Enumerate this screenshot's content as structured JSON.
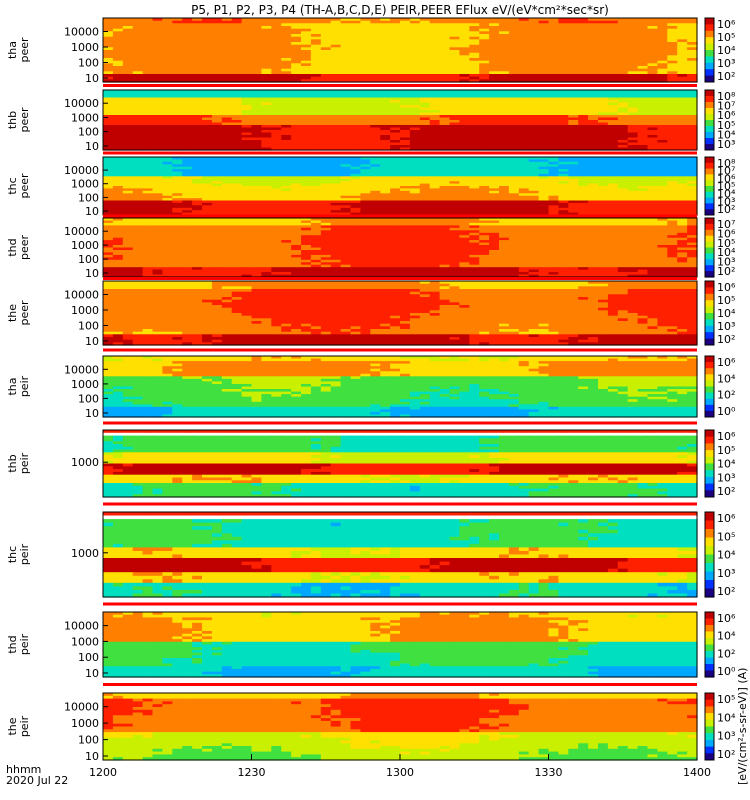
{
  "chart_data": {
    "type": "heatmap",
    "title": "P5, P1, P2, P3, P4 (TH-A,B,C,D,E) PEIR,PEER EFlux eV/(eV*cm²*sec*sr)",
    "x_ticks": [
      "1200",
      "1230",
      "1300",
      "1330",
      "1400"
    ],
    "x_label_lines": [
      "hhmm",
      "2020 Jul 22"
    ],
    "colorbar_unit_label": "[eV/(cm²-s-sr-eV)] (A)",
    "colormap": [
      "#1a0080",
      "#0030ff",
      "#00a8ff",
      "#00e0c0",
      "#40e040",
      "#c8f000",
      "#ffe000",
      "#ff8000",
      "#ff2000",
      "#c00000"
    ],
    "panels": [
      {
        "name": "thaeer",
        "label_lines": [
          "tha",
          "peer"
        ],
        "y_ticks": [
          "10",
          "100",
          "1000",
          "10000"
        ],
        "colorbar_ticks": [
          "10⁶",
          "10⁵",
          "10⁴",
          "10³",
          "10²"
        ]
      },
      {
        "name": "thbeer",
        "label_lines": [
          "thb",
          "peer"
        ],
        "y_ticks": [
          "10",
          "100",
          "1000",
          "10000"
        ],
        "colorbar_ticks": [
          "10⁸",
          "10⁷",
          "10⁶",
          "10⁵",
          "10⁴",
          "10³"
        ]
      },
      {
        "name": "thceer",
        "label_lines": [
          "thc",
          "peer"
        ],
        "y_ticks": [
          "10",
          "100",
          "1000",
          "10000"
        ],
        "colorbar_ticks": [
          "10⁸",
          "10⁷",
          "10⁶",
          "10⁵",
          "10⁴",
          "10³",
          "10²"
        ]
      },
      {
        "name": "thdeer",
        "label_lines": [
          "thd",
          "peer"
        ],
        "y_ticks": [
          "10",
          "100",
          "1000",
          "10000"
        ],
        "colorbar_ticks": [
          "10⁷",
          "10⁶",
          "10⁵",
          "10⁴",
          "10³",
          "10²"
        ]
      },
      {
        "name": "theeer",
        "label_lines": [
          "the",
          "peer"
        ],
        "y_ticks": [
          "10",
          "100",
          "1000",
          "10000"
        ],
        "colorbar_ticks": [
          "10⁶",
          "10⁵",
          "10⁴",
          "10³",
          "10²"
        ]
      },
      {
        "name": "thaeir",
        "label_lines": [
          "tha",
          "peir"
        ],
        "y_ticks": [
          "10",
          "100",
          "1000",
          "10000"
        ],
        "colorbar_ticks": [
          "10⁶",
          "10⁴",
          "10²",
          "10⁰"
        ]
      },
      {
        "name": "thbeir",
        "label_lines": [
          "thb",
          "peir"
        ],
        "y_ticks": [
          "1000"
        ],
        "colorbar_ticks": [
          "10⁶",
          "10⁵",
          "10⁴",
          "10³",
          "10²"
        ]
      },
      {
        "name": "thceir",
        "label_lines": [
          "thc",
          "peir"
        ],
        "y_ticks": [
          "1000"
        ],
        "colorbar_ticks": [
          "10⁶",
          "10⁵",
          "10⁴",
          "10³",
          "10²"
        ]
      },
      {
        "name": "thdeir",
        "label_lines": [
          "thd",
          "peir"
        ],
        "y_ticks": [
          "10",
          "100",
          "1000",
          "10000"
        ],
        "colorbar_ticks": [
          "10⁶",
          "10⁴",
          "10²",
          "10⁰"
        ]
      },
      {
        "name": "theeir",
        "label_lines": [
          "the",
          "peir"
        ],
        "y_ticks": [
          "10",
          "100",
          "1000",
          "10000"
        ],
        "colorbar_ticks": [
          "10⁵",
          "10⁴",
          "10³",
          "10²"
        ]
      }
    ]
  }
}
